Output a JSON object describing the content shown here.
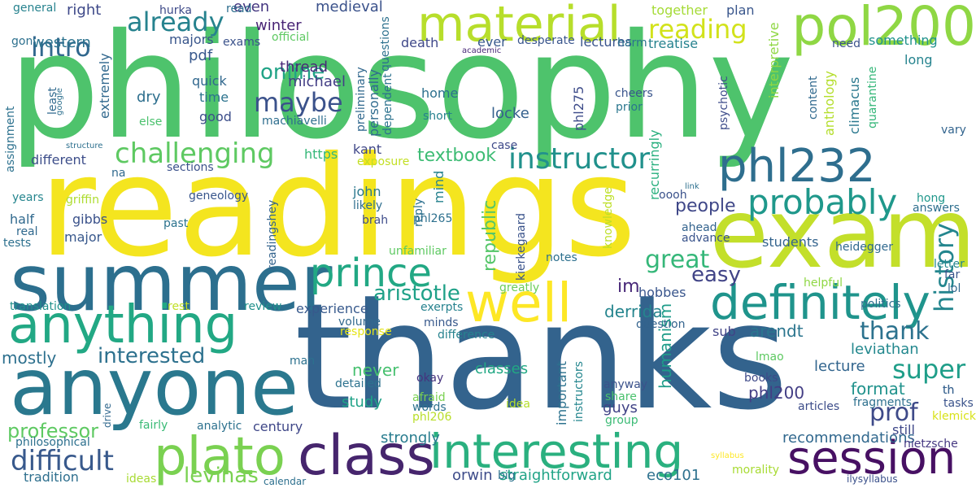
{
  "words": [
    {
      "text": "philosophy",
      "color": "#4ec36c"
    },
    {
      "text": "readings",
      "color": "#f4e51f"
    },
    {
      "text": "thanks",
      "color": "#33638d"
    },
    {
      "text": "exam",
      "color": "#c3df2a"
    },
    {
      "text": "summer",
      "color": "#2c6f8e"
    },
    {
      "text": "anyone",
      "color": "#2a788e"
    },
    {
      "text": "material",
      "color": "#b7de2b"
    },
    {
      "text": "pol200",
      "color": "#8fd744"
    },
    {
      "text": "phl232",
      "color": "#2e6e8e"
    },
    {
      "text": "class",
      "color": "#46256d"
    },
    {
      "text": "interesting",
      "color": "#2ab07f"
    },
    {
      "text": "session",
      "color": "#471063"
    },
    {
      "text": "anything",
      "color": "#22a884"
    },
    {
      "text": "definitely",
      "color": "#1f948c"
    },
    {
      "text": "plato",
      "color": "#7ad151"
    },
    {
      "text": "well",
      "color": "#fde725"
    },
    {
      "text": "prince",
      "color": "#22a884"
    },
    {
      "text": "probably",
      "color": "#1f988b"
    },
    {
      "text": "history",
      "color": "#24868e"
    },
    {
      "text": "instructor",
      "color": "#21918c"
    },
    {
      "text": "challenging",
      "color": "#5ec962"
    },
    {
      "text": "reading",
      "color": "#d2e21b"
    },
    {
      "text": "already",
      "color": "#26828e"
    },
    {
      "text": "intro",
      "color": "#31688e"
    },
    {
      "text": "maybe",
      "color": "#3b528b"
    },
    {
      "text": "online",
      "color": "#20a386"
    },
    {
      "text": "difficult",
      "color": "#38598c"
    },
    {
      "text": "professor",
      "color": "#5ec962"
    },
    {
      "text": "interested",
      "color": "#2d718e"
    },
    {
      "text": "great",
      "color": "#35b779"
    },
    {
      "text": "easy",
      "color": "#414487"
    },
    {
      "text": "super",
      "color": "#1f9e89"
    },
    {
      "text": "prof",
      "color": "#3e4a89"
    },
    {
      "text": "thank",
      "color": "#2c728e"
    },
    {
      "text": "aristotle",
      "color": "#1fa188"
    },
    {
      "text": "republic",
      "color": "#54c568"
    },
    {
      "text": "textbook",
      "color": "#3dbc74"
    },
    {
      "text": "levinas",
      "color": "#7ad151"
    },
    {
      "text": "mostly",
      "color": "#2d708e"
    },
    {
      "text": "people",
      "color": "#3f4788"
    },
    {
      "text": "im",
      "color": "#482878"
    },
    {
      "text": "derrida",
      "color": "#25858e"
    },
    {
      "text": "arendt",
      "color": "#2b758e"
    },
    {
      "text": "leviathan",
      "color": "#23888e"
    },
    {
      "text": "humanism",
      "color": "#1e9c89"
    },
    {
      "text": "format",
      "color": "#20928c"
    },
    {
      "text": "phl200",
      "color": "#433e85"
    },
    {
      "text": "lecture",
      "color": "#32658e"
    },
    {
      "text": "strongly",
      "color": "#287c8e"
    },
    {
      "text": "century",
      "color": "#3f4788"
    },
    {
      "text": "tradition",
      "color": "#2e6f8e"
    },
    {
      "text": "recommendations",
      "color": "#31688e"
    },
    {
      "text": "orwin",
      "color": "#3e4c8a"
    },
    {
      "text": "straightforward",
      "color": "#20a386"
    },
    {
      "text": "eco101",
      "color": "#2d718e"
    },
    {
      "text": "never",
      "color": "#46c06f"
    },
    {
      "text": "study",
      "color": "#1fa287"
    },
    {
      "text": "classes",
      "color": "#22a884"
    },
    {
      "text": "michael",
      "color": "#433e85"
    },
    {
      "text": "quick",
      "color": "#31688e"
    },
    {
      "text": "time",
      "color": "#2c738e"
    },
    {
      "text": "good",
      "color": "#3d4e8a"
    },
    {
      "text": "dry",
      "color": "#2e6f8e"
    },
    {
      "text": "pdf",
      "color": "#38588c"
    },
    {
      "text": "majors",
      "color": "#39568c"
    },
    {
      "text": "thread",
      "color": "#482878"
    },
    {
      "text": "winter",
      "color": "#482475"
    },
    {
      "text": "even",
      "color": "#453781"
    },
    {
      "text": "medieval",
      "color": "#3b528b"
    },
    {
      "text": "right",
      "color": "#3e4989"
    },
    {
      "text": "western",
      "color": "#2c738e"
    },
    {
      "text": "extremely",
      "color": "#31688e"
    },
    {
      "text": "personally",
      "color": "#2f6b8e"
    },
    {
      "text": "together",
      "color": "#a5db36"
    },
    {
      "text": "plan",
      "color": "#39568c"
    },
    {
      "text": "lectures",
      "color": "#3a548c"
    },
    {
      "text": "treatise",
      "color": "#26828e"
    },
    {
      "text": "death",
      "color": "#3f4889"
    },
    {
      "text": "ever",
      "color": "#37598c"
    },
    {
      "text": "desperate",
      "color": "#39558c"
    },
    {
      "text": "something",
      "color": "#20928c"
    },
    {
      "text": "long",
      "color": "#25838e"
    },
    {
      "text": "home",
      "color": "#2d708e"
    },
    {
      "text": "short",
      "color": "#26818e"
    },
    {
      "text": "locke",
      "color": "#35608d"
    },
    {
      "text": "cheers",
      "color": "#39558c"
    },
    {
      "text": "prior",
      "color": "#2a768e"
    },
    {
      "text": "kant",
      "color": "#3f4788"
    },
    {
      "text": "https",
      "color": "#35b779"
    },
    {
      "text": "sections",
      "color": "#3b518b"
    },
    {
      "text": "different",
      "color": "#3d4e8a"
    },
    {
      "text": "john",
      "color": "#2a788e"
    },
    {
      "text": "likely",
      "color": "#2e6e8e"
    },
    {
      "text": "brah",
      "color": "#3e4c8a"
    },
    {
      "text": "gibbs",
      "color": "#3b528b"
    },
    {
      "text": "half",
      "color": "#30698e"
    },
    {
      "text": "real",
      "color": "#30698e"
    },
    {
      "text": "tests",
      "color": "#2d708e"
    },
    {
      "text": "major",
      "color": "#38588c"
    },
    {
      "text": "years",
      "color": "#25858e"
    },
    {
      "text": "griffin",
      "color": "#addc30"
    },
    {
      "text": "geneology",
      "color": "#39568c"
    },
    {
      "text": "past",
      "color": "#2c738e"
    },
    {
      "text": "students",
      "color": "#33638d"
    },
    {
      "text": "heidegger",
      "color": "#30698e"
    },
    {
      "text": "ahead",
      "color": "#33638d"
    },
    {
      "text": "advance",
      "color": "#3a548c"
    },
    {
      "text": "notes",
      "color": "#2d708e"
    },
    {
      "text": "knowledge",
      "color": "#bddf26"
    },
    {
      "text": "kierkegaard",
      "color": "#3a538b"
    },
    {
      "text": "mind",
      "color": "#26828e"
    },
    {
      "text": "reply",
      "color": "#2d708e"
    },
    {
      "text": "greatly",
      "color": "#6ccd5a"
    },
    {
      "text": "politics",
      "color": "#2e6e8e"
    },
    {
      "text": "helpful",
      "color": "#8fd744"
    },
    {
      "text": "lol",
      "color": "#31688e"
    },
    {
      "text": "far",
      "color": "#39558c"
    },
    {
      "text": "letter",
      "color": "#24868e"
    },
    {
      "text": "hong",
      "color": "#1f978b"
    },
    {
      "text": "answers",
      "color": "#2e6f8e"
    },
    {
      "text": "vary",
      "color": "#32648e"
    },
    {
      "text": "tasks",
      "color": "#3a538b"
    },
    {
      "text": "th",
      "color": "#35608d"
    },
    {
      "text": "fragments",
      "color": "#2d708e"
    },
    {
      "text": "klemick",
      "color": "#d8e219"
    },
    {
      "text": "still",
      "color": "#3f4889"
    },
    {
      "text": "nietzsche",
      "color": "#453882"
    },
    {
      "text": "articles",
      "color": "#3d4d8a"
    },
    {
      "text": "lmao",
      "color": "#5ec962"
    },
    {
      "text": "books",
      "color": "#3e4a89"
    },
    {
      "text": "th",
      "color": "#35608d"
    },
    {
      "text": "idea",
      "color": "#b5de2b"
    },
    {
      "text": "share",
      "color": "#4ac16d"
    },
    {
      "text": "group",
      "color": "#3bbb75"
    },
    {
      "text": "guys",
      "color": "#414487"
    },
    {
      "text": "anyway",
      "color": "#3b528b"
    },
    {
      "text": "instructors",
      "color": "#24868e"
    },
    {
      "text": "important",
      "color": "#2c728e"
    },
    {
      "text": "afraid",
      "color": "#7ad151"
    },
    {
      "text": "words",
      "color": "#2d718e"
    },
    {
      "text": "phl206",
      "color": "#b8de29"
    },
    {
      "text": "okay",
      "color": "#46337e"
    },
    {
      "text": "detailed",
      "color": "#2c728e"
    },
    {
      "text": "difference",
      "color": "#26828e"
    },
    {
      "text": "response",
      "color": "#e5e419"
    },
    {
      "text": "minds",
      "color": "#38598c"
    },
    {
      "text": "question",
      "color": "#33638d"
    },
    {
      "text": "volume",
      "color": "#31688e"
    },
    {
      "text": "experience",
      "color": "#37598c"
    },
    {
      "text": "exerpts",
      "color": "#26828e"
    },
    {
      "text": "review",
      "color": "#21918c"
    },
    {
      "text": "rest",
      "color": "#c0df25"
    },
    {
      "text": "translation",
      "color": "#21918c"
    },
    {
      "text": "man",
      "color": "#2c718e"
    },
    {
      "text": "hobbes",
      "color": "#39558c"
    },
    {
      "text": "sub",
      "color": "#414487"
    },
    {
      "text": "philosophical",
      "color": "#2d708e"
    },
    {
      "text": "analytic",
      "color": "#2d718e"
    },
    {
      "text": "fairly",
      "color": "#3aba76"
    },
    {
      "text": "ideas",
      "color": "#a8db34"
    },
    {
      "text": "big",
      "color": "#2c728e"
    },
    {
      "text": "calendar",
      "color": "#2d708e"
    },
    {
      "text": "syllabus",
      "color": "#fde725"
    },
    {
      "text": "morality",
      "color": "#a8db34"
    },
    {
      "text": "ilysyllabus",
      "color": "#3b518b"
    },
    {
      "text": "drive",
      "color": "#31688e"
    },
    {
      "text": "unfamiliar",
      "color": "#5ec962"
    },
    {
      "text": "phl265",
      "color": "#2d708e"
    },
    {
      "text": "readingshey",
      "color": "#33638d"
    },
    {
      "text": "exposure",
      "color": "#c2df23"
    },
    {
      "text": "case",
      "color": "#3e4989"
    },
    {
      "text": "na",
      "color": "#30698e"
    },
    {
      "text": "link",
      "color": "#2d708e"
    },
    {
      "text": "oooh",
      "color": "#3b528b"
    },
    {
      "text": "machiavelli",
      "color": "#2e6e8e"
    },
    {
      "text": "phl275",
      "color": "#3e4c8a"
    },
    {
      "text": "dependent",
      "color": "#2c728e"
    },
    {
      "text": "preliminary",
      "color": "#31688e"
    },
    {
      "text": "questions",
      "color": "#2d718e"
    },
    {
      "text": "academic",
      "color": "#482878"
    },
    {
      "text": "harm",
      "color": "#2c738e"
    },
    {
      "text": "recurringly",
      "color": "#2ab07f"
    },
    {
      "text": "interpretive",
      "color": "#8fd744"
    },
    {
      "text": "psychotic",
      "color": "#3e4c8a"
    },
    {
      "text": "content",
      "color": "#30698e"
    },
    {
      "text": "anthology",
      "color": "#b4de2c"
    },
    {
      "text": "climacus",
      "color": "#2a788e"
    },
    {
      "text": "quarantine",
      "color": "#35b779"
    },
    {
      "text": "need",
      "color": "#3b528b"
    },
    {
      "text": "hurka",
      "color": "#3e4a89"
    },
    {
      "text": "read",
      "color": "#2e6e8e"
    },
    {
      "text": "general",
      "color": "#26828e"
    },
    {
      "text": "official",
      "color": "#5ec962"
    },
    {
      "text": "exams",
      "color": "#3b528b"
    },
    {
      "text": "gon",
      "color": "#2d708e"
    },
    {
      "text": "assignment",
      "color": "#2c718e"
    },
    {
      "text": "structure",
      "color": "#2d708e"
    },
    {
      "text": "else",
      "color": "#4ac16d"
    },
    {
      "text": "least",
      "color": "#30698e"
    },
    {
      "text": "google",
      "color": "#2d708e"
    }
  ]
}
